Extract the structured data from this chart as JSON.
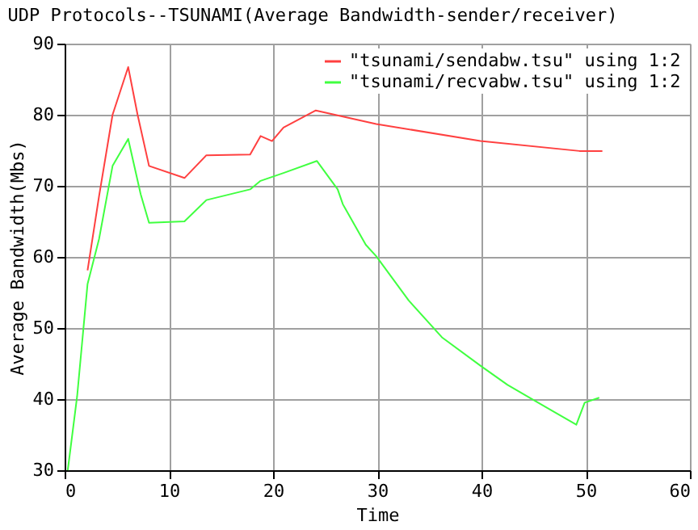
{
  "chart_data": {
    "type": "line",
    "title": "UDP Protocols--TSUNAMI(Average Bandwidth-sender/receiver)",
    "xlabel": "Time",
    "ylabel": "Average Bandwidth(Mbs)",
    "xlim": [
      0,
      60
    ],
    "ylim": [
      30,
      90
    ],
    "xticks": [
      0,
      10,
      20,
      30,
      40,
      50,
      60
    ],
    "yticks": [
      30,
      40,
      50,
      60,
      70,
      80,
      90
    ],
    "grid": true,
    "legend": "top right",
    "line_style": "solid",
    "marker": "none",
    "series": [
      {
        "name": "\"tsunami/sendabw.tsu\" using 1:2",
        "color": "#ff4040",
        "x": [
          2.2,
          3.3,
          4.6,
          6.1,
          7.0,
          8.1,
          11.5,
          13.6,
          17.8,
          18.8,
          19.9,
          21.0,
          24.1,
          29.9,
          39.9,
          49.4,
          51.6
        ],
        "values": [
          58.1,
          68.5,
          80.0,
          86.7,
          80.0,
          72.8,
          71.1,
          74.3,
          74.4,
          77.0,
          76.3,
          78.2,
          80.6,
          78.7,
          76.3,
          74.9,
          74.9
        ]
      },
      {
        "name": "\"tsunami/recvabw.tsu\" using 1:2",
        "color": "#40ff40",
        "x": [
          0.3,
          1.2,
          2.2,
          3.3,
          4.6,
          6.1,
          7.3,
          8.1,
          11.5,
          13.6,
          17.8,
          18.8,
          21.0,
          24.2,
          26.2,
          26.7,
          28.9,
          29.9,
          33.0,
          36.2,
          39.9,
          42.5,
          45.2,
          49.1,
          49.9,
          51.3
        ],
        "values": [
          30.0,
          40.4,
          56.2,
          62.5,
          72.8,
          76.6,
          68.8,
          64.8,
          65.0,
          68.0,
          69.5,
          70.7,
          71.8,
          73.5,
          69.5,
          67.4,
          61.7,
          60.1,
          53.9,
          48.7,
          44.7,
          42.0,
          39.7,
          36.4,
          39.5,
          40.2
        ]
      }
    ]
  }
}
